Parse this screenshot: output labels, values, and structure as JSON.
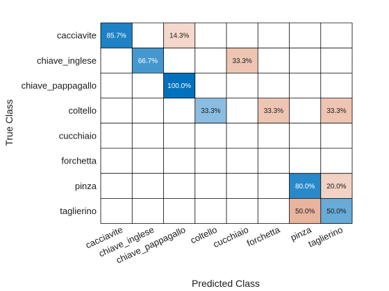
{
  "chart_data": {
    "type": "heatmap",
    "xlabel": "Predicted Class",
    "ylabel": "True Class",
    "rows": [
      "cacciavite",
      "chiave_inglese",
      "chiave_pappagallo",
      "coltello",
      "cucchiaio",
      "forchetta",
      "pinza",
      "taglierino"
    ],
    "columns": [
      "cacciavite",
      "chiave_inglese",
      "chiave_pappagallo",
      "coltello",
      "cucchiaio",
      "forchetta",
      "pinza",
      "taglierino"
    ],
    "cells": [
      {
        "row": 0,
        "col": 0,
        "value": 85.7,
        "label": "85.7%",
        "correct": true
      },
      {
        "row": 0,
        "col": 2,
        "value": 14.3,
        "label": "14.3%",
        "correct": false
      },
      {
        "row": 1,
        "col": 1,
        "value": 66.7,
        "label": "66.7%",
        "correct": true
      },
      {
        "row": 1,
        "col": 4,
        "value": 33.3,
        "label": "33.3%",
        "correct": false
      },
      {
        "row": 2,
        "col": 2,
        "value": 100.0,
        "label": "100.0%",
        "correct": true
      },
      {
        "row": 3,
        "col": 3,
        "value": 33.3,
        "label": "33.3%",
        "correct": true
      },
      {
        "row": 3,
        "col": 5,
        "value": 33.3,
        "label": "33.3%",
        "correct": false
      },
      {
        "row": 3,
        "col": 7,
        "value": 33.3,
        "label": "33.3%",
        "correct": false
      },
      {
        "row": 6,
        "col": 6,
        "value": 80.0,
        "label": "80.0%",
        "correct": true
      },
      {
        "row": 6,
        "col": 7,
        "value": 20.0,
        "label": "20.0%",
        "correct": false
      },
      {
        "row": 7,
        "col": 6,
        "value": 50.0,
        "label": "50.0%",
        "correct": false
      },
      {
        "row": 7,
        "col": 7,
        "value": 50.0,
        "label": "50.0%",
        "correct": true
      }
    ],
    "grid": true,
    "colors": {
      "correct_high": "#0072bd",
      "correct_low": "#cfe3f3",
      "incorrect_high": "#d9825b",
      "incorrect_low": "#f8e6de",
      "gridline": "#000000"
    }
  }
}
